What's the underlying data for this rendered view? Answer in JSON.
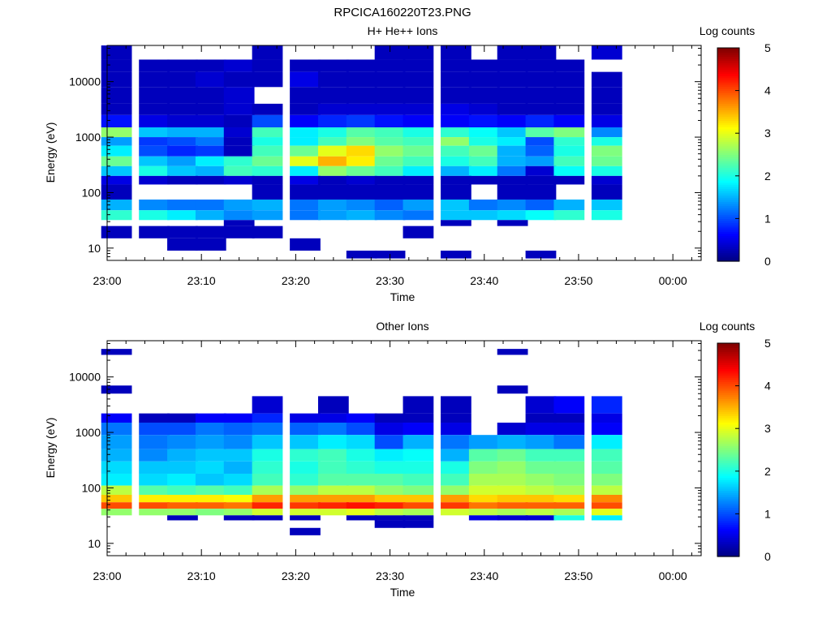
{
  "figure": {
    "title": "RPCICA160220T23.PNG"
  },
  "colormap": [
    "#00007f",
    "#0000ff",
    "#007fff",
    "#00ffff",
    "#7fff7f",
    "#ffff00",
    "#ff7f00",
    "#ff0000",
    "#7f0000"
  ],
  "chart_data": [
    {
      "type": "heatmap",
      "title": "H+ He++ Ions",
      "xlabel": "Time",
      "ylabel": "Energy (eV)",
      "y_scale": "log",
      "ylim": [
        6,
        45000
      ],
      "xlim": [
        "23:00",
        "00:03"
      ],
      "x_ticks": [
        "23:00",
        "23:10",
        "23:20",
        "23:30",
        "23:40",
        "23:50",
        "00:00"
      ],
      "y_ticks": [
        {
          "value": 10,
          "label": "10"
        },
        {
          "value": 100,
          "label": "100"
        },
        {
          "value": 1000,
          "label": "1000"
        },
        {
          "value": 10000,
          "label": "10000"
        }
      ],
      "colorbar": {
        "title": "Log counts",
        "min": 0,
        "max": 5,
        "ticks": [
          "0",
          "1",
          "2",
          "3",
          "4",
          "5"
        ]
      },
      "time_columns": [
        "23:01",
        "23:05",
        "23:08",
        "23:11",
        "23:14",
        "23:17",
        "23:21",
        "23:24",
        "23:27",
        "23:30",
        "23:33",
        "23:37",
        "23:40",
        "23:43",
        "23:46",
        "23:49",
        "23:53"
      ],
      "bands": [
        {
          "energy": [
            25000,
            45000
          ],
          "log_counts": [
            0.3,
            null,
            null,
            null,
            null,
            0.3,
            null,
            null,
            null,
            0.3,
            0.3,
            0.3,
            null,
            0.3,
            0.3,
            null,
            0.4
          ]
        },
        {
          "energy": [
            15000,
            25000
          ],
          "log_counts": [
            0.3,
            0.3,
            0.3,
            0.3,
            0.4,
            0.3,
            0.3,
            0.3,
            0.3,
            0.3,
            0.3,
            0.3,
            0.3,
            0.3,
            0.3,
            0.3,
            null
          ]
        },
        {
          "energy": [
            8000,
            15000
          ],
          "log_counts": [
            0.3,
            0.3,
            0.3,
            0.4,
            0.3,
            0.3,
            0.5,
            0.3,
            0.3,
            0.3,
            0.3,
            0.3,
            0.3,
            0.3,
            0.3,
            0.3,
            0.3
          ]
        },
        {
          "energy": [
            4000,
            8000
          ],
          "log_counts": [
            0.3,
            0.3,
            0.3,
            0.3,
            0.4,
            null,
            0.3,
            0.3,
            0.3,
            0.3,
            0.3,
            0.3,
            0.3,
            0.3,
            0.3,
            0.3,
            0.3
          ]
        },
        {
          "energy": [
            2500,
            4000
          ],
          "log_counts": [
            0.3,
            0.3,
            0.3,
            0.3,
            0.4,
            0.3,
            0.3,
            0.4,
            0.4,
            0.4,
            0.4,
            0.5,
            0.4,
            0.3,
            0.3,
            0.3,
            0.3
          ]
        },
        {
          "energy": [
            1500,
            2500
          ],
          "log_counts": [
            0.7,
            0.5,
            0.4,
            0.4,
            0.3,
            1.0,
            0.6,
            0.8,
            0.9,
            0.7,
            0.6,
            0.6,
            0.7,
            0.6,
            0.8,
            0.6,
            0.5
          ]
        },
        {
          "energy": [
            1000,
            1500
          ],
          "log_counts": [
            2.6,
            1.6,
            1.5,
            1.5,
            0.4,
            2.2,
            1.8,
            2.0,
            2.3,
            2.2,
            2.0,
            2.1,
            1.9,
            1.6,
            2.3,
            2.5,
            1.3
          ]
        },
        {
          "energy": [
            700,
            1000
          ],
          "log_counts": [
            1.4,
            0.9,
            1.0,
            1.2,
            0.3,
            2.0,
            1.8,
            2.2,
            2.5,
            2.3,
            2.2,
            2.6,
            2.0,
            1.8,
            1.0,
            2.1,
            2.0
          ]
        },
        {
          "energy": [
            450,
            700
          ],
          "log_counts": [
            1.8,
            1.0,
            0.8,
            0.9,
            0.3,
            2.2,
            2.4,
            3.0,
            3.3,
            2.6,
            2.4,
            2.2,
            2.4,
            1.5,
            1.1,
            2.0,
            2.5
          ]
        },
        {
          "energy": [
            300,
            450
          ],
          "log_counts": [
            2.4,
            1.6,
            1.4,
            1.8,
            2.1,
            2.4,
            3.0,
            3.5,
            3.2,
            2.4,
            2.2,
            2.0,
            2.2,
            1.5,
            1.4,
            2.2,
            2.4
          ]
        },
        {
          "energy": [
            200,
            300
          ],
          "log_counts": [
            1.6,
            2.0,
            1.6,
            1.5,
            2.2,
            2.1,
            1.8,
            2.6,
            2.4,
            2.2,
            1.8,
            1.5,
            1.8,
            1.2,
            0.4,
            1.9,
            2.0
          ]
        },
        {
          "energy": [
            140,
            200
          ],
          "log_counts": [
            0.5,
            0.4,
            0.3,
            0.3,
            0.4,
            0.3,
            0.5,
            0.3,
            0.4,
            0.3,
            0.3,
            0.3,
            0.3,
            0.3,
            0.3,
            0.3,
            0.4
          ]
        },
        {
          "energy": [
            75,
            140
          ],
          "log_counts": [
            0.3,
            null,
            null,
            null,
            null,
            0.3,
            0.3,
            0.3,
            0.3,
            0.3,
            0.3,
            0.3,
            null,
            0.3,
            0.3,
            null,
            0.3
          ]
        },
        {
          "energy": [
            48,
            75
          ],
          "log_counts": [
            1.5,
            1.3,
            1.2,
            1.2,
            1.4,
            1.5,
            1.2,
            1.4,
            1.3,
            1.1,
            1.4,
            1.6,
            1.2,
            1.3,
            1.1,
            1.5,
            1.6
          ]
        },
        {
          "energy": [
            32,
            48
          ],
          "log_counts": [
            2.1,
            2.0,
            1.8,
            1.5,
            1.3,
            1.4,
            1.2,
            1.4,
            1.5,
            1.3,
            1.2,
            1.6,
            1.6,
            1.7,
            1.9,
            2.1,
            2.0
          ]
        },
        {
          "energy": [
            25,
            32
          ],
          "log_counts": [
            null,
            null,
            null,
            null,
            0.3,
            null,
            null,
            null,
            null,
            null,
            null,
            0.3,
            null,
            0.3,
            null,
            null,
            null
          ]
        },
        {
          "energy": [
            15,
            25
          ],
          "log_counts": [
            0.3,
            0.3,
            0.3,
            0.3,
            0.3,
            0.3,
            null,
            null,
            null,
            null,
            0.3,
            null,
            null,
            null,
            null,
            null,
            null
          ]
        },
        {
          "energy": [
            9,
            15
          ],
          "log_counts": [
            null,
            null,
            0.3,
            0.3,
            null,
            null,
            0.3,
            null,
            null,
            null,
            null,
            null,
            null,
            null,
            null,
            null,
            null
          ]
        },
        {
          "energy": [
            6.5,
            9
          ],
          "log_counts": [
            null,
            null,
            null,
            null,
            null,
            null,
            null,
            null,
            0.3,
            0.3,
            null,
            0.3,
            null,
            null,
            0.3,
            null,
            null
          ]
        }
      ]
    },
    {
      "type": "heatmap",
      "title": "Other Ions",
      "xlabel": "Time",
      "ylabel": "Energy (eV)",
      "y_scale": "log",
      "ylim": [
        6,
        45000
      ],
      "xlim": [
        "23:00",
        "00:03"
      ],
      "x_ticks": [
        "23:00",
        "23:10",
        "23:20",
        "23:30",
        "23:40",
        "23:50",
        "00:00"
      ],
      "y_ticks": [
        {
          "value": 10,
          "label": "10"
        },
        {
          "value": 100,
          "label": "100"
        },
        {
          "value": 1000,
          "label": "1000"
        },
        {
          "value": 10000,
          "label": "10000"
        }
      ],
      "colorbar": {
        "title": "Log counts",
        "min": 0,
        "max": 5,
        "ticks": [
          "0",
          "1",
          "2",
          "3",
          "4",
          "5"
        ]
      },
      "time_columns": [
        "23:01",
        "23:05",
        "23:08",
        "23:11",
        "23:14",
        "23:17",
        "23:21",
        "23:24",
        "23:27",
        "23:30",
        "23:33",
        "23:37",
        "23:40",
        "23:43",
        "23:46",
        "23:49",
        "23:53"
      ],
      "bands": [
        {
          "energy": [
            25000,
            32000
          ],
          "log_counts": [
            0.3,
            null,
            null,
            null,
            null,
            null,
            null,
            null,
            null,
            null,
            null,
            null,
            null,
            0.3,
            null,
            null,
            null
          ]
        },
        {
          "energy": [
            5000,
            7000
          ],
          "log_counts": [
            0.3,
            null,
            null,
            null,
            null,
            null,
            null,
            null,
            null,
            null,
            null,
            null,
            null,
            0.3,
            null,
            null,
            null
          ]
        },
        {
          "energy": [
            2200,
            4500
          ],
          "log_counts": [
            null,
            null,
            null,
            null,
            null,
            0.4,
            null,
            0.3,
            null,
            null,
            0.3,
            0.3,
            null,
            null,
            0.4,
            0.6,
            0.8
          ]
        },
        {
          "energy": [
            1500,
            2200
          ],
          "log_counts": [
            0.6,
            0.3,
            0.3,
            0.6,
            0.6,
            0.8,
            0.5,
            0.5,
            0.6,
            0.3,
            0.3,
            0.3,
            null,
            null,
            0.3,
            0.3,
            0.5
          ]
        },
        {
          "energy": [
            900,
            1500
          ],
          "log_counts": [
            1.2,
            1.0,
            1.0,
            1.2,
            1.1,
            1.2,
            1.1,
            1.2,
            1.0,
            0.5,
            0.6,
            0.5,
            null,
            0.4,
            0.5,
            0.5,
            0.6
          ]
        },
        {
          "energy": [
            500,
            900
          ],
          "log_counts": [
            1.4,
            1.2,
            1.3,
            1.4,
            1.3,
            1.6,
            1.6,
            1.8,
            1.7,
            1.0,
            1.5,
            1.2,
            1.4,
            1.5,
            1.4,
            1.2,
            1.8
          ]
        },
        {
          "energy": [
            300,
            500
          ],
          "log_counts": [
            1.5,
            1.3,
            1.5,
            1.6,
            1.6,
            2.0,
            2.1,
            2.2,
            2.0,
            1.8,
            1.9,
            1.5,
            2.3,
            2.4,
            2.2,
            2.2,
            2.2
          ]
        },
        {
          "energy": [
            180,
            300
          ],
          "log_counts": [
            1.7,
            1.6,
            1.6,
            1.7,
            1.5,
            2.1,
            2.0,
            2.2,
            2.1,
            2.0,
            2.0,
            2.0,
            2.5,
            2.6,
            2.4,
            2.4,
            2.3
          ]
        },
        {
          "energy": [
            110,
            180
          ],
          "log_counts": [
            1.8,
            1.7,
            1.8,
            1.6,
            1.7,
            2.2,
            2.1,
            2.3,
            2.3,
            2.3,
            2.2,
            2.2,
            2.7,
            2.7,
            2.6,
            2.5,
            2.5
          ]
        },
        {
          "energy": [
            75,
            110
          ],
          "log_counts": [
            2.8,
            2.3,
            2.2,
            2.3,
            2.2,
            2.7,
            2.6,
            2.8,
            2.8,
            2.6,
            2.5,
            2.6,
            2.9,
            2.9,
            2.8,
            2.7,
            2.8
          ]
        },
        {
          "energy": [
            55,
            75
          ],
          "log_counts": [
            3.4,
            3.2,
            3.2,
            3.2,
            3.1,
            3.6,
            3.6,
            3.6,
            3.6,
            3.4,
            3.4,
            3.6,
            3.3,
            3.4,
            3.4,
            3.3,
            3.7
          ]
        },
        {
          "energy": [
            42,
            55
          ],
          "log_counts": [
            4.0,
            4.0,
            3.9,
            3.9,
            3.8,
            4.2,
            4.1,
            4.2,
            4.3,
            4.2,
            4.0,
            4.1,
            3.8,
            3.9,
            3.9,
            3.9,
            4.0
          ]
        },
        {
          "energy": [
            32,
            42
          ],
          "log_counts": [
            2.6,
            2.6,
            2.6,
            2.5,
            2.6,
            2.9,
            2.9,
            2.9,
            3.0,
            2.8,
            2.7,
            2.9,
            2.8,
            2.7,
            2.8,
            2.7,
            3.0
          ]
        },
        {
          "energy": [
            26,
            32
          ],
          "log_counts": [
            null,
            null,
            0.3,
            null,
            0.3,
            0.3,
            0.3,
            null,
            0.3,
            0.3,
            0.3,
            null,
            0.5,
            0.4,
            0.4,
            2.0,
            1.8
          ]
        },
        {
          "energy": [
            19,
            26
          ],
          "log_counts": [
            null,
            null,
            null,
            null,
            null,
            null,
            null,
            null,
            null,
            0.3,
            0.3,
            null,
            null,
            null,
            null,
            null,
            null
          ]
        },
        {
          "energy": [
            14,
            19
          ],
          "log_counts": [
            null,
            null,
            null,
            null,
            null,
            null,
            0.3,
            null,
            null,
            null,
            null,
            null,
            null,
            null,
            null,
            null,
            null
          ]
        }
      ]
    }
  ]
}
